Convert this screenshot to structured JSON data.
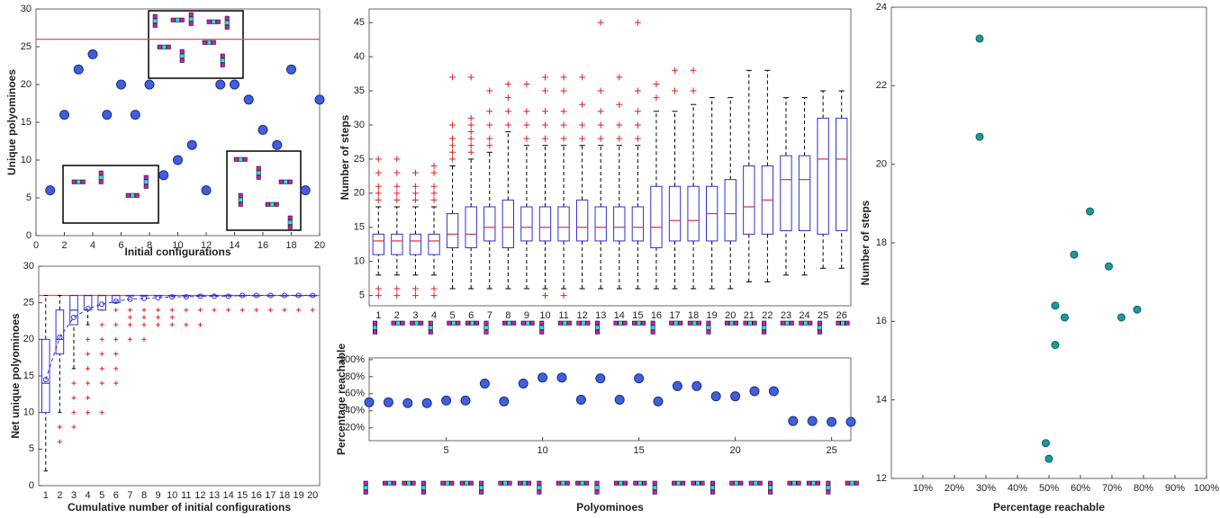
{
  "chart_data": [
    {
      "type": "scatter",
      "xlabel": "Initial configurations",
      "ylabel": "Unique polyominoes",
      "x": [
        1,
        2,
        3,
        4,
        5,
        6,
        7,
        8,
        9,
        10,
        11,
        12,
        13,
        14,
        15,
        16,
        17,
        18,
        19,
        20
      ],
      "values": [
        6,
        16,
        22,
        24,
        16,
        20,
        16,
        20,
        8,
        10,
        12,
        6,
        20,
        20,
        18,
        14,
        12,
        22,
        6,
        18
      ],
      "color": "#4060d8",
      "hline": 26,
      "hline_color": "#e0505a",
      "xlim": [
        0,
        20
      ],
      "xticks": [
        0,
        2,
        4,
        6,
        8,
        10,
        12,
        14,
        16,
        18,
        20
      ],
      "ylim": [
        0,
        30
      ],
      "yticks": [
        0,
        5,
        10,
        15,
        20,
        25,
        30
      ]
    },
    {
      "type": "box",
      "xlabel": "Cumulative number of initial configurations",
      "ylabel": "Net unique polyominoes",
      "categories": [
        1,
        2,
        3,
        4,
        5,
        6,
        7,
        8,
        9,
        10,
        11,
        12,
        13,
        14,
        15,
        16,
        17,
        18,
        19,
        20
      ],
      "boxes": [
        {
          "whislo": 2,
          "q1": 10,
          "med": 14,
          "q3": 20,
          "whishi": 26,
          "mean": 14.5,
          "outliers": []
        },
        {
          "whislo": 10,
          "q1": 18,
          "med": 20,
          "q3": 24,
          "whishi": 26,
          "mean": 20.3,
          "outliers": [
            6,
            8
          ]
        },
        {
          "whislo": 16,
          "q1": 22,
          "med": 24,
          "q3": 26,
          "whishi": 26,
          "mean": 23,
          "outliers": [
            8,
            10,
            12,
            14
          ]
        },
        {
          "whislo": 22,
          "q1": 24,
          "med": 26,
          "q3": 26,
          "whishi": 26,
          "mean": 24.2,
          "outliers": [
            10,
            12,
            14,
            16,
            18,
            20
          ]
        },
        {
          "whislo": 24,
          "q1": 24,
          "med": 26,
          "q3": 26,
          "whishi": 26,
          "mean": 24.8,
          "outliers": [
            10,
            14,
            16,
            18,
            20,
            22
          ]
        },
        {
          "whislo": 25,
          "q1": 25,
          "med": 26,
          "q3": 26,
          "whishi": 26,
          "mean": 25.2,
          "outliers": [
            14,
            16,
            18,
            20,
            22,
            24
          ]
        },
        {
          "whislo": 26,
          "q1": 26,
          "med": 26,
          "q3": 26,
          "whishi": 26,
          "mean": 25.5,
          "outliers": [
            20,
            22,
            23,
            24
          ]
        },
        {
          "whislo": 26,
          "q1": 26,
          "med": 26,
          "q3": 26,
          "whishi": 26,
          "mean": 25.6,
          "outliers": [
            20,
            22,
            23,
            24
          ]
        },
        {
          "whislo": 26,
          "q1": 26,
          "med": 26,
          "q3": 26,
          "whishi": 26,
          "mean": 25.7,
          "outliers": [
            22,
            23,
            24
          ]
        },
        {
          "whislo": 26,
          "q1": 26,
          "med": 26,
          "q3": 26,
          "whishi": 26,
          "mean": 25.8,
          "outliers": [
            22,
            23,
            24
          ]
        },
        {
          "whislo": 26,
          "q1": 26,
          "med": 26,
          "q3": 26,
          "whishi": 26,
          "mean": 25.8,
          "outliers": [
            22,
            24
          ]
        },
        {
          "whislo": 26,
          "q1": 26,
          "med": 26,
          "q3": 26,
          "whishi": 26,
          "mean": 25.9,
          "outliers": [
            22,
            24
          ]
        },
        {
          "whislo": 26,
          "q1": 26,
          "med": 26,
          "q3": 26,
          "whishi": 26,
          "mean": 25.9,
          "outliers": [
            24
          ]
        },
        {
          "whislo": 26,
          "q1": 26,
          "med": 26,
          "q3": 26,
          "whishi": 26,
          "mean": 25.9,
          "outliers": [
            24
          ]
        },
        {
          "whislo": 26,
          "q1": 26,
          "med": 26,
          "q3": 26,
          "whishi": 26,
          "mean": 26,
          "outliers": [
            24
          ]
        },
        {
          "whislo": 26,
          "q1": 26,
          "med": 26,
          "q3": 26,
          "whishi": 26,
          "mean": 26,
          "outliers": [
            24
          ]
        },
        {
          "whislo": 26,
          "q1": 26,
          "med": 26,
          "q3": 26,
          "whishi": 26,
          "mean": 26,
          "outliers": [
            24
          ]
        },
        {
          "whislo": 26,
          "q1": 26,
          "med": 26,
          "q3": 26,
          "whishi": 26,
          "mean": 26,
          "outliers": [
            24
          ]
        },
        {
          "whislo": 26,
          "q1": 26,
          "med": 26,
          "q3": 26,
          "whishi": 26,
          "mean": 26,
          "outliers": [
            24
          ]
        },
        {
          "whislo": 26,
          "q1": 26,
          "med": 26,
          "q3": 26,
          "whishi": 26,
          "mean": 26,
          "outliers": [
            24
          ]
        }
      ],
      "color": "#3030d0",
      "median_color": "#3030d0",
      "hline": 26,
      "hline_color": "#e0505a",
      "ylim": [
        0,
        30
      ],
      "yticks": [
        0,
        5,
        10,
        15,
        20,
        25,
        30
      ]
    },
    {
      "type": "box",
      "ylabel": "Number of steps",
      "categories": [
        1,
        2,
        3,
        4,
        5,
        6,
        7,
        8,
        9,
        10,
        11,
        12,
        13,
        14,
        15,
        16,
        17,
        18,
        19,
        20,
        21,
        22,
        23,
        24,
        25,
        26
      ],
      "boxes": [
        {
          "whislo": 8,
          "q1": 11,
          "med": 13,
          "q3": 14,
          "whishi": 18,
          "outliers": [
            5,
            6,
            19,
            20,
            21,
            23,
            25
          ]
        },
        {
          "whislo": 8,
          "q1": 11,
          "med": 13,
          "q3": 14,
          "whishi": 18,
          "outliers": [
            5,
            6,
            19,
            20,
            21,
            23,
            25
          ]
        },
        {
          "whislo": 8,
          "q1": 11,
          "med": 13,
          "q3": 14,
          "whishi": 18,
          "outliers": [
            5,
            6,
            19,
            20,
            21,
            23
          ]
        },
        {
          "whislo": 8,
          "q1": 11,
          "med": 13,
          "q3": 14,
          "whishi": 18,
          "outliers": [
            5,
            6,
            19,
            20,
            21,
            23,
            24
          ]
        },
        {
          "whislo": 6,
          "q1": 12,
          "med": 14,
          "q3": 17,
          "whishi": 24,
          "outliers": [
            25,
            26,
            27,
            28,
            30,
            37
          ]
        },
        {
          "whislo": 6,
          "q1": 12,
          "med": 14,
          "q3": 18,
          "whishi": 25,
          "outliers": [
            26,
            27,
            28,
            29,
            30,
            31,
            37
          ]
        },
        {
          "whislo": 6,
          "q1": 13,
          "med": 15,
          "q3": 18,
          "whishi": 26,
          "outliers": [
            27,
            28,
            30,
            32,
            35
          ]
        },
        {
          "whislo": 6,
          "q1": 12,
          "med": 15,
          "q3": 19,
          "whishi": 29,
          "outliers": [
            30,
            32,
            34,
            36
          ]
        },
        {
          "whislo": 6,
          "q1": 13,
          "med": 15,
          "q3": 18,
          "whishi": 27,
          "outliers": [
            28,
            30,
            32,
            36
          ]
        },
        {
          "whislo": 6,
          "q1": 13,
          "med": 15,
          "q3": 18,
          "whishi": 27,
          "outliers": [
            5,
            28,
            30,
            32,
            35,
            37
          ]
        },
        {
          "whislo": 6,
          "q1": 13,
          "med": 15,
          "q3": 18,
          "whishi": 27,
          "outliers": [
            5,
            28,
            30,
            32,
            35,
            37
          ]
        },
        {
          "whislo": 6,
          "q1": 13,
          "med": 15,
          "q3": 19,
          "whishi": 27,
          "outliers": [
            28,
            30,
            33,
            37
          ]
        },
        {
          "whislo": 6,
          "q1": 13,
          "med": 15,
          "q3": 18,
          "whishi": 27,
          "outliers": [
            28,
            30,
            32,
            35,
            45
          ]
        },
        {
          "whislo": 6,
          "q1": 13,
          "med": 15,
          "q3": 18,
          "whishi": 27,
          "outliers": [
            28,
            30,
            33,
            37
          ]
        },
        {
          "whislo": 6,
          "q1": 13,
          "med": 15,
          "q3": 18,
          "whishi": 27,
          "outliers": [
            28,
            30,
            32,
            35,
            45
          ]
        },
        {
          "whislo": 6,
          "q1": 12,
          "med": 15,
          "q3": 21,
          "whishi": 32,
          "outliers": [
            34,
            36
          ]
        },
        {
          "whislo": 6,
          "q1": 13,
          "med": 16,
          "q3": 21,
          "whishi": 32,
          "outliers": [
            35,
            38
          ]
        },
        {
          "whislo": 6,
          "q1": 13,
          "med": 16,
          "q3": 21,
          "whishi": 33,
          "outliers": [
            35,
            38
          ]
        },
        {
          "whislo": 6,
          "q1": 13,
          "med": 17,
          "q3": 21,
          "whishi": 34,
          "outliers": []
        },
        {
          "whislo": 6,
          "q1": 13,
          "med": 17,
          "q3": 22,
          "whishi": 34,
          "outliers": []
        },
        {
          "whislo": 7,
          "q1": 14,
          "med": 18,
          "q3": 24,
          "whishi": 38,
          "outliers": []
        },
        {
          "whislo": 7,
          "q1": 14,
          "med": 19,
          "q3": 24,
          "whishi": 38,
          "outliers": []
        },
        {
          "whislo": 8,
          "q1": 14.5,
          "med": 22,
          "q3": 25.5,
          "whishi": 34,
          "outliers": []
        },
        {
          "whislo": 8,
          "q1": 14.5,
          "med": 22,
          "q3": 25.5,
          "whishi": 34,
          "outliers": []
        },
        {
          "whislo": 9,
          "q1": 14,
          "med": 25,
          "q3": 31,
          "whishi": 35,
          "outliers": []
        },
        {
          "whislo": 9,
          "q1": 14.5,
          "med": 25,
          "q3": 31,
          "whishi": 35,
          "outliers": []
        }
      ],
      "color": "#3030d0",
      "median_color": "#e03040",
      "ylim": [
        3.5,
        47
      ],
      "yticks": [
        5,
        10,
        15,
        20,
        25,
        30,
        35,
        40,
        45
      ]
    },
    {
      "type": "scatter",
      "xlabel": "Polyominoes",
      "ylabel": "Percentage reachable",
      "x": [
        1,
        2,
        3,
        4,
        5,
        6,
        7,
        8,
        9,
        10,
        11,
        12,
        13,
        14,
        15,
        16,
        17,
        18,
        19,
        20,
        21,
        22,
        23,
        24,
        25,
        26
      ],
      "values": [
        50,
        50,
        49,
        49,
        52,
        52,
        72,
        51,
        72,
        79,
        79,
        53,
        78,
        53,
        78,
        51,
        69,
        69,
        57,
        57,
        63,
        63,
        28,
        28,
        27,
        27
      ],
      "color": "#4060d8",
      "xlim": [
        1,
        26
      ],
      "xticks": [
        5,
        10,
        15,
        20,
        25
      ],
      "ylim": [
        5,
        102
      ],
      "yticks": [
        {
          "value": 20,
          "label": "20%"
        },
        {
          "value": 40,
          "label": "40%"
        },
        {
          "value": 60,
          "label": "60%"
        },
        {
          "value": 80,
          "label": "80%"
        },
        {
          "value": 100,
          "label": "100%"
        }
      ]
    },
    {
      "type": "scatter",
      "xlabel": "Percentage reachable",
      "ylabel": "Number of steps",
      "x": [
        28,
        28,
        63,
        58,
        69,
        52,
        55,
        73,
        78,
        52,
        49,
        50
      ],
      "values": [
        23.2,
        20.7,
        18.8,
        17.7,
        17.4,
        16.4,
        16.1,
        16.1,
        16.3,
        15.4,
        12.9,
        12.5
      ],
      "color": "#1a9a9a",
      "xlim": [
        0,
        100
      ],
      "xticks": [
        {
          "value": 10,
          "label": "10%"
        },
        {
          "value": 20,
          "label": "20%"
        },
        {
          "value": 30,
          "label": "30%"
        },
        {
          "value": 40,
          "label": "40%"
        },
        {
          "value": 50,
          "label": "50%"
        },
        {
          "value": 60,
          "label": "60%"
        },
        {
          "value": 70,
          "label": "70%"
        },
        {
          "value": 80,
          "label": "80%"
        },
        {
          "value": 90,
          "label": "90%"
        },
        {
          "value": 100,
          "label": "100%"
        }
      ],
      "ylim": [
        12,
        24
      ],
      "yticks": [
        12,
        14,
        16,
        18,
        20,
        22,
        24
      ]
    }
  ]
}
